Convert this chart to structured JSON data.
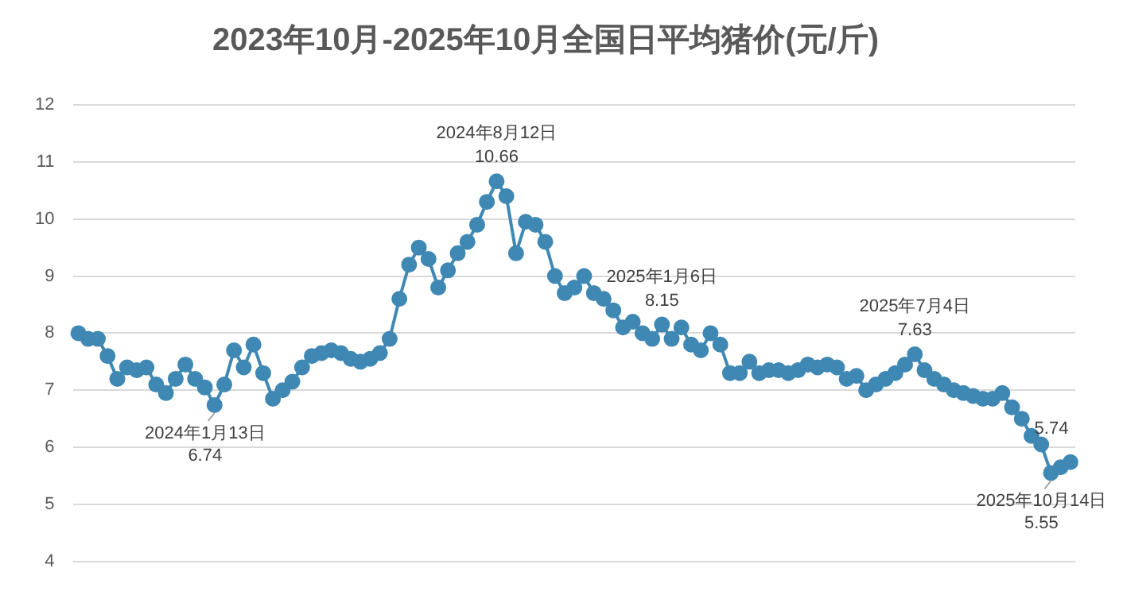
{
  "chart_data": {
    "type": "line",
    "title": "2023年10月-2025年10月全国日平均猪价(元/斤)",
    "categories": [
      null,
      null,
      null,
      null,
      null,
      null,
      null,
      null,
      null,
      null,
      null,
      null,
      null,
      null,
      null,
      null,
      null,
      null,
      null,
      null,
      null,
      null,
      null,
      null,
      null,
      null,
      null,
      null,
      null,
      null,
      null,
      null,
      null,
      null,
      null,
      null,
      null,
      null,
      null,
      null,
      null,
      null,
      null,
      null,
      null,
      null,
      null,
      null,
      null,
      null,
      null,
      null,
      null,
      null,
      null,
      null,
      null,
      null,
      null,
      null,
      null,
      null,
      null,
      null,
      null,
      null,
      null,
      null,
      null,
      null,
      null,
      null,
      null,
      null,
      null,
      null,
      null,
      null,
      null,
      null,
      null,
      null,
      null,
      null,
      null,
      null,
      null,
      null,
      null,
      null,
      null,
      null,
      null,
      null,
      null,
      null,
      null,
      null,
      null,
      null,
      null,
      null,
      null
    ],
    "series": [
      {
        "color": "#3f88b3",
        "values": [
          8.0,
          7.9,
          7.9,
          7.6,
          7.2,
          7.4,
          7.35,
          7.4,
          7.1,
          6.95,
          7.2,
          7.45,
          7.2,
          7.05,
          6.74,
          7.1,
          7.7,
          7.4,
          7.8,
          7.3,
          6.85,
          7.0,
          7.15,
          7.4,
          7.6,
          7.65,
          7.7,
          7.65,
          7.55,
          7.5,
          7.55,
          7.65,
          7.9,
          8.6,
          9.2,
          9.5,
          9.3,
          8.8,
          9.1,
          9.4,
          9.6,
          9.9,
          10.3,
          10.66,
          10.4,
          9.4,
          9.95,
          9.9,
          9.6,
          9.0,
          8.7,
          8.8,
          9.0,
          8.7,
          8.6,
          8.4,
          8.1,
          8.2,
          8.0,
          7.9,
          8.15,
          7.9,
          8.1,
          7.8,
          7.7,
          8.0,
          7.8,
          7.3,
          7.3,
          7.5,
          7.3,
          7.35,
          7.35,
          7.3,
          7.35,
          7.45,
          7.4,
          7.45,
          7.4,
          7.2,
          7.25,
          7.0,
          7.1,
          7.2,
          7.3,
          7.45,
          7.63,
          7.35,
          7.2,
          7.1,
          7.0,
          6.95,
          6.9,
          6.85,
          6.85,
          6.95,
          6.7,
          6.5,
          6.2,
          6.05,
          5.55,
          5.65,
          5.74
        ]
      }
    ],
    "ylim": [
      4,
      12
    ],
    "yticks": [
      4,
      5,
      6,
      7,
      8,
      9,
      10,
      11,
      12
    ],
    "grid": "y",
    "marker": "circle",
    "line_style": "solid",
    "legend": false,
    "annotations": [
      {
        "text": "2024年1月13日\n6.74",
        "y": 6.74
      },
      {
        "text": "2024年8月12日\n10.66",
        "y": 10.66
      },
      {
        "text": "2025年1月6日\n8.15",
        "y": 8.15
      },
      {
        "text": "2025年7月4日\n7.63",
        "y": 7.63
      },
      {
        "text": "2025年10月14日\n5.55",
        "y": 5.55
      },
      {
        "text": "5.74",
        "y": 5.74
      }
    ]
  }
}
